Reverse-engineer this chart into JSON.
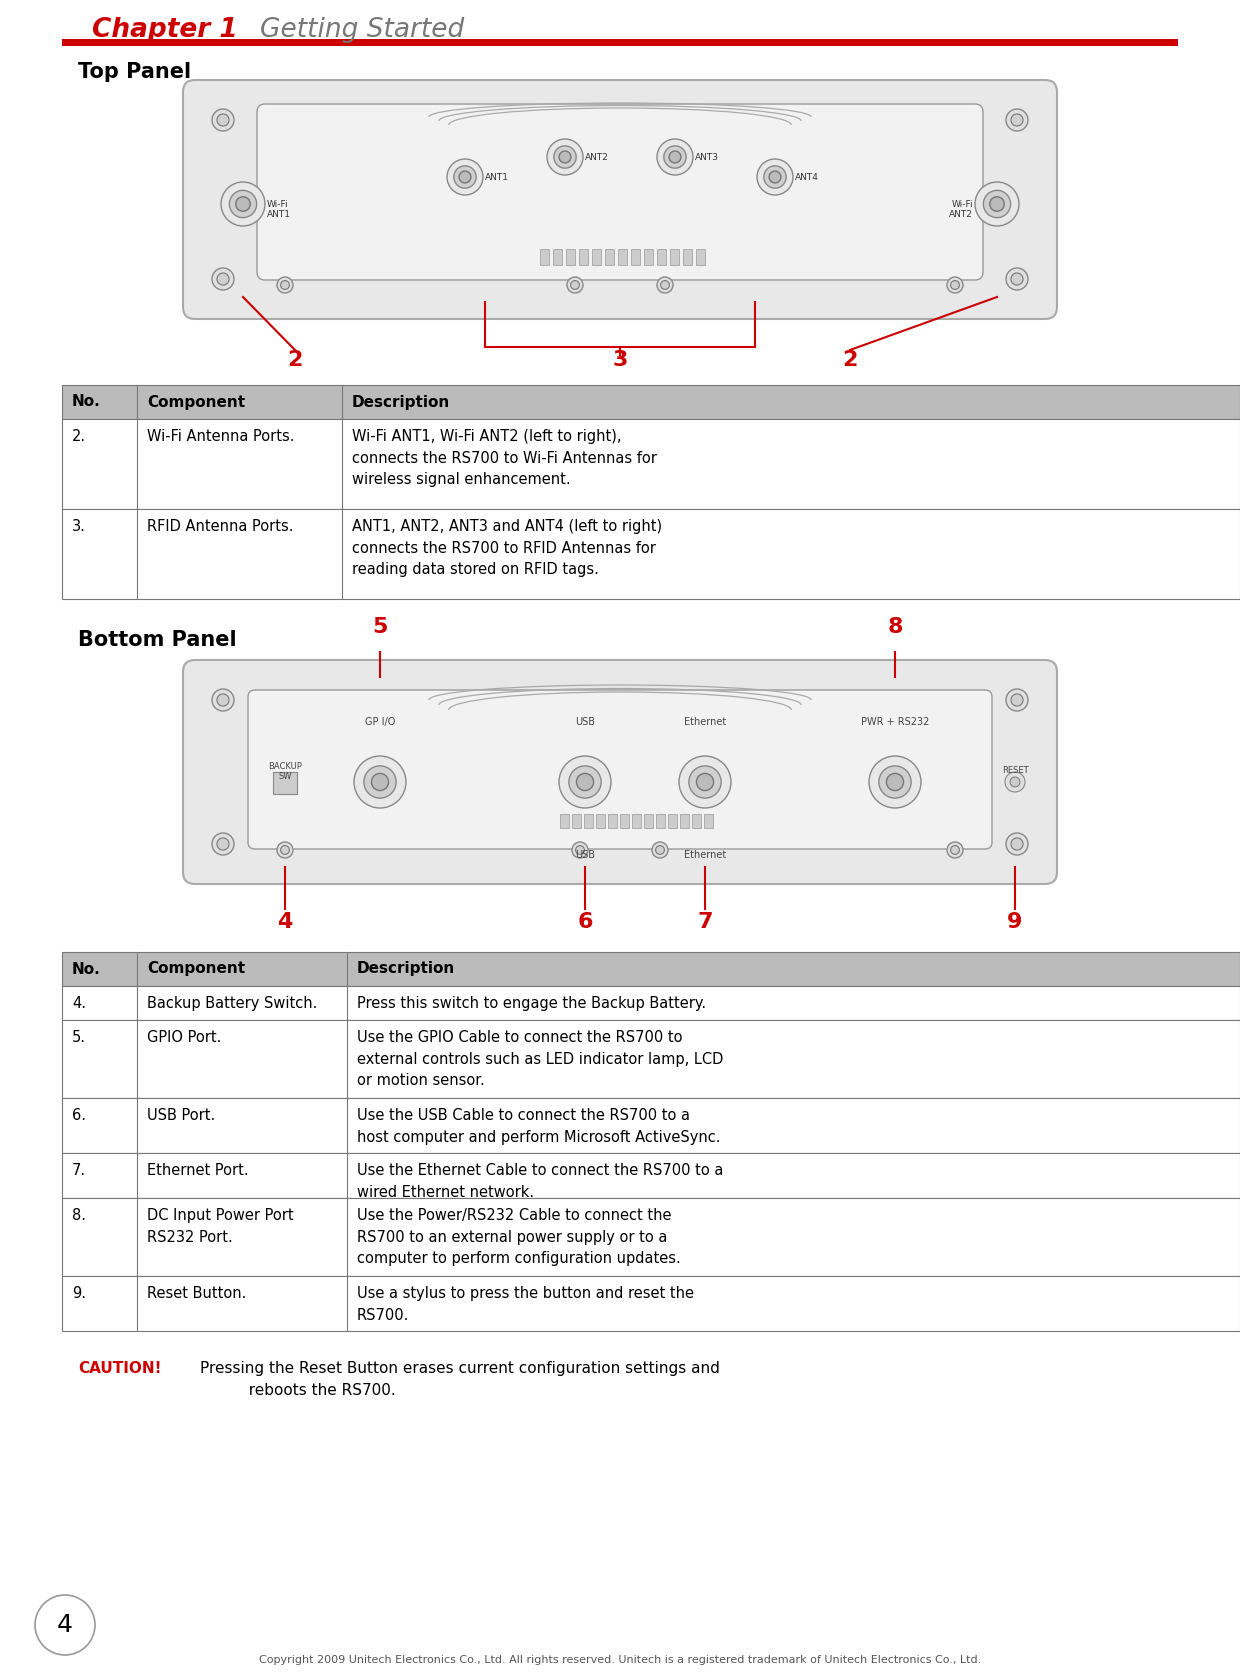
{
  "chapter_title_red": "Chapter 1",
  "chapter_title_gray": "Getting Started",
  "red_line_color": "#cc0000",
  "section1_title": "Top Panel",
  "section2_title": "Bottom Panel",
  "table1_header": [
    "No.",
    "Component",
    "Description"
  ],
  "table1_rows": [
    [
      "2.",
      "Wi-Fi Antenna Ports.",
      "Wi-Fi ANT1, Wi-Fi ANT2 (left to right),\nconnects the RS700 to Wi-Fi Antennas for\nwireless signal enhancement."
    ],
    [
      "3.",
      "RFID Antenna Ports.",
      "ANT1, ANT2, ANT3 and ANT4 (left to right)\nconnects the RS700 to RFID Antennas for\nreading data stored on RFID tags."
    ]
  ],
  "table2_header": [
    "No.",
    "Component",
    "Description"
  ],
  "table2_rows": [
    [
      "4.",
      "Backup Battery Switch.",
      "Press this switch to engage the Backup Battery."
    ],
    [
      "5.",
      "GPIO Port.",
      "Use the GPIO Cable to connect the RS700 to\nexternal controls such as LED indicator lamp, LCD\nor motion sensor."
    ],
    [
      "6.",
      "USB Port.",
      "Use the USB Cable to connect the RS700 to a\nhost computer and perform Microsoft ActiveSync."
    ],
    [
      "7.",
      "Ethernet Port.",
      "Use the Ethernet Cable to connect the RS700 to a\nwired Ethernet network."
    ],
    [
      "8.",
      "DC Input Power Port\nRS232 Port.",
      "Use the Power/RS232 Cable to connect the\nRS700 to an external power supply or to a\ncomputer to perform configuration updates."
    ],
    [
      "9.",
      "Reset Button.",
      "Use a stylus to press the button and reset the\nRS700."
    ]
  ],
  "caution_label": "CAUTION!",
  "caution_text": "Pressing the Reset Button erases current configuration settings and\n          reboots the RS700.",
  "page_number": "4",
  "copyright": "Copyright 2009 Unitech Electronics Co., Ltd. All rights reserved. Unitech is a registered trademark of Unitech Electronics Co., Ltd.",
  "bg_color": "#ffffff",
  "table_header_bg": "#bbbbbb",
  "table_border": "#777777",
  "red_color": "#cc0000",
  "black_color": "#000000",
  "gray_color": "#555555",
  "dark_gray": "#333333"
}
